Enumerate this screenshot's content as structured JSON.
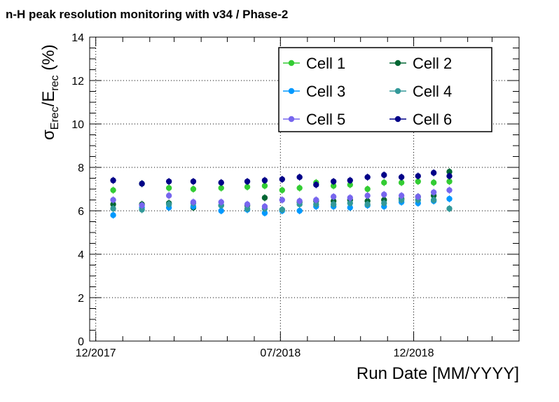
{
  "chart_data": {
    "type": "scatter",
    "title": "n-H peak resolution monitoring with v34 / Phase-2",
    "xlabel": "Run Date [MM/YYYY]",
    "ylabel": {
      "sigma": "σ",
      "sub1": "Erec",
      "mid": "/E",
      "sub2": "rec",
      "unit": " (%)"
    },
    "ylim": [
      0,
      14
    ],
    "xlim": [
      "2017-11-24",
      "2019-04-01"
    ],
    "x_ticks": [
      {
        "date": "2017-12-01",
        "label": "12/2017"
      },
      {
        "date": "2018-07-01",
        "label": "07/2018"
      },
      {
        "date": "2018-12-01",
        "label": "12/2018"
      }
    ],
    "y_ticks": [
      {
        "value": 0,
        "label": "0"
      },
      {
        "value": 2,
        "label": "2"
      },
      {
        "value": 4,
        "label": "4"
      },
      {
        "value": 6,
        "label": "6"
      },
      {
        "value": 8,
        "label": "8"
      },
      {
        "value": 10,
        "label": "10"
      },
      {
        "value": 12,
        "label": "12"
      },
      {
        "value": 14,
        "label": "14"
      }
    ],
    "grid": true,
    "legend_position": "top-right",
    "x": [
      "2017-12-21",
      "2018-01-23",
      "2018-02-23",
      "2018-03-23",
      "2018-04-24",
      "2018-05-24",
      "2018-06-13",
      "2018-07-03",
      "2018-07-23",
      "2018-08-11",
      "2018-08-31",
      "2018-09-19",
      "2018-10-09",
      "2018-10-28",
      "2018-11-17",
      "2018-12-06",
      "2018-12-24",
      "2019-01-11"
    ],
    "series": [
      {
        "name": "Cell 1",
        "color": "#33cc33",
        "values": [
          6.95,
          7.25,
          7.05,
          7.0,
          7.05,
          7.1,
          7.15,
          6.95,
          7.05,
          7.3,
          7.15,
          7.2,
          7.0,
          7.3,
          7.3,
          7.35,
          7.3,
          7.35
        ]
      },
      {
        "name": "Cell 2",
        "color": "#006633",
        "values": [
          6.3,
          6.3,
          6.35,
          6.15,
          6.25,
          6.25,
          6.6,
          6.05,
          6.4,
          6.45,
          6.45,
          6.5,
          6.45,
          6.5,
          6.55,
          6.65,
          6.7,
          7.8
        ]
      },
      {
        "name": "Cell 3",
        "color": "#0099ff",
        "values": [
          5.8,
          6.15,
          6.15,
          6.2,
          6.0,
          6.05,
          5.9,
          6.0,
          6.0,
          6.2,
          6.2,
          6.15,
          6.25,
          6.2,
          6.4,
          6.35,
          6.45,
          6.55
        ]
      },
      {
        "name": "Cell 4",
        "color": "#339999",
        "values": [
          6.1,
          6.05,
          6.3,
          6.35,
          6.25,
          6.1,
          6.1,
          6.05,
          6.3,
          6.3,
          6.3,
          6.35,
          6.3,
          6.35,
          6.5,
          6.5,
          6.5,
          6.1
        ]
      },
      {
        "name": "Cell 5",
        "color": "#7766ee",
        "values": [
          6.5,
          6.25,
          6.7,
          6.4,
          6.4,
          6.3,
          6.2,
          6.5,
          6.45,
          6.5,
          6.65,
          6.6,
          6.7,
          6.75,
          6.7,
          6.65,
          6.85,
          6.95
        ]
      },
      {
        "name": "Cell 6",
        "color": "#000088",
        "values": [
          7.4,
          7.25,
          7.35,
          7.35,
          7.3,
          7.35,
          7.4,
          7.45,
          7.55,
          7.2,
          7.35,
          7.4,
          7.55,
          7.65,
          7.55,
          7.6,
          7.75,
          7.6
        ]
      }
    ]
  }
}
